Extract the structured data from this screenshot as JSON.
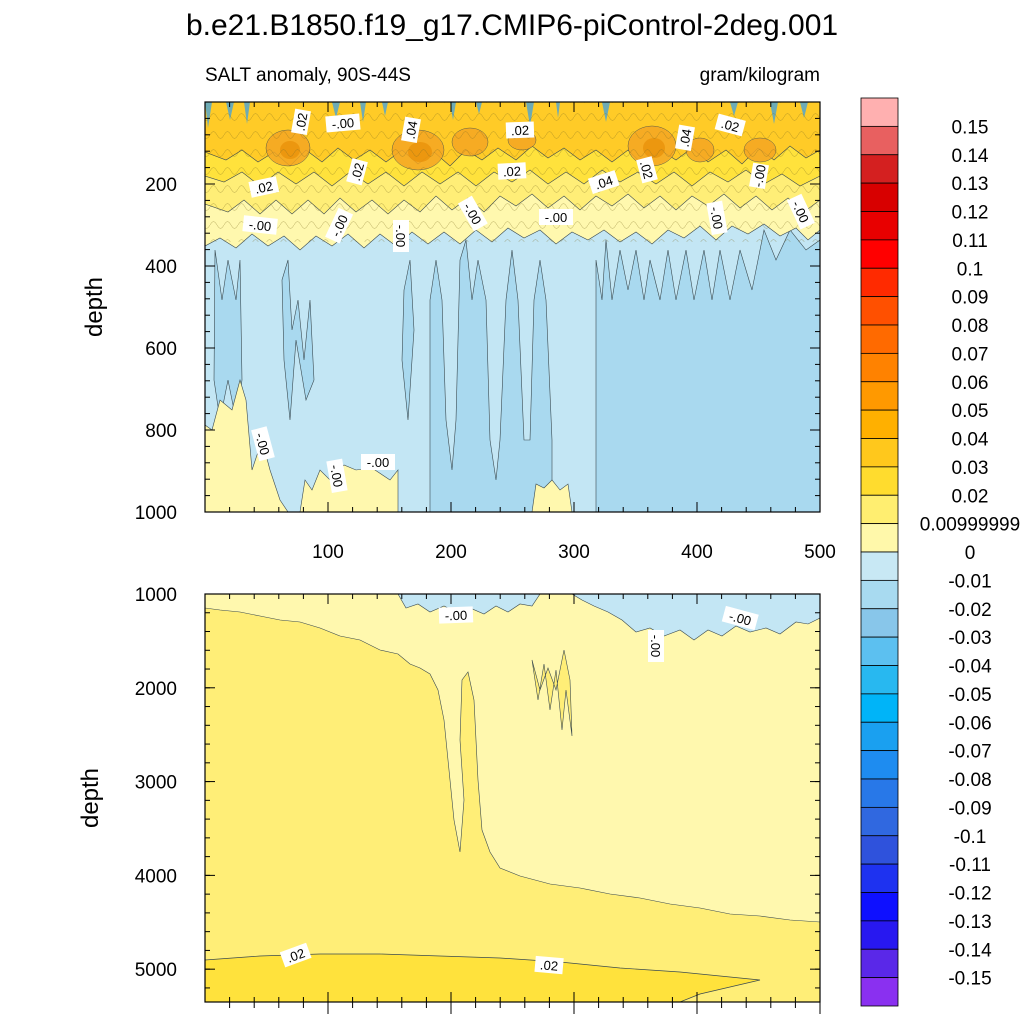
{
  "chart_data": {
    "type": "heatmap",
    "title": "b.e21.B1850.f19_g17.CMIP6-piControl-2deg.001",
    "subtitle_left": "SALT anomaly, 90S-44S",
    "subtitle_right": "gram/kilogram",
    "xlabel": "",
    "x_range": [
      0,
      500
    ],
    "x_ticks": [
      "100",
      "200",
      "300",
      "400",
      "500"
    ],
    "colors": {
      "neg_light": "#c3e6f4",
      "neg2": "#a7d8ef",
      "neg3": "#86c6ea",
      "neg4": "#5dbbee",
      "pos1": "#fff8ae",
      "pos2": "#ffee77",
      "pos3": "#ffe23c",
      "pos4": "#ffcb27",
      "pos5": "#ffb314",
      "pos6": "#f39a05"
    },
    "panels": [
      {
        "name": "upper",
        "ylabel": "depth",
        "y_range": [
          0,
          1000
        ],
        "y_ticks": [
          "200",
          "400",
          "600",
          "800",
          "1000"
        ],
        "contour_labels": [
          ".02",
          "-.00",
          ".04",
          ".02",
          ".04",
          ".02",
          ".02",
          ".02",
          ".02",
          ".04",
          ".02",
          "-.00",
          "-.00",
          "-.00",
          "-.00",
          "-.00",
          "-.00",
          "-.00",
          "-.00",
          "-.00",
          "-.00"
        ]
      },
      {
        "name": "lower",
        "ylabel": "depth",
        "y_range": [
          1000,
          5350
        ],
        "y_ticks": [
          "1000",
          "2000",
          "3000",
          "4000",
          "5000"
        ],
        "contour_labels": [
          "-.00",
          "-.00",
          "-.00",
          ".02",
          ".02"
        ]
      }
    ],
    "colorbar": {
      "labels": [
        "0.15",
        "0.14",
        "0.13",
        "0.12",
        "0.11",
        "0.1",
        "0.09",
        "0.08",
        "0.07",
        "0.06",
        "0.05",
        "0.04",
        "0.03",
        "0.02",
        "0.00999999",
        "0",
        "-0.01",
        "-0.02",
        "-0.03",
        "-0.04",
        "-0.05",
        "-0.06",
        "-0.07",
        "-0.08",
        "-0.09",
        "-0.1",
        "-0.11",
        "-0.12",
        "-0.13",
        "-0.14",
        "-0.15"
      ],
      "colors": [
        "#ffb0b0",
        "#e86060",
        "#d42020",
        "#d80000",
        "#e80000",
        "#ff0000",
        "#ff2a00",
        "#ff5000",
        "#ff6a00",
        "#ff8200",
        "#ff9900",
        "#ffb000",
        "#ffc81c",
        "#ffdc2e",
        "#ffee70",
        "#fff8aa",
        "#c8e8f4",
        "#a8daf0",
        "#88c6ea",
        "#5cc0f0",
        "#28b8f0",
        "#00b4f8",
        "#1aa0f0",
        "#1e8cf0",
        "#2878e8",
        "#3068e0",
        "#2f52dc",
        "#1e32f0",
        "#0e10ff",
        "#2818f0",
        "#5a28e8",
        "#8a30f0"
      ]
    }
  }
}
